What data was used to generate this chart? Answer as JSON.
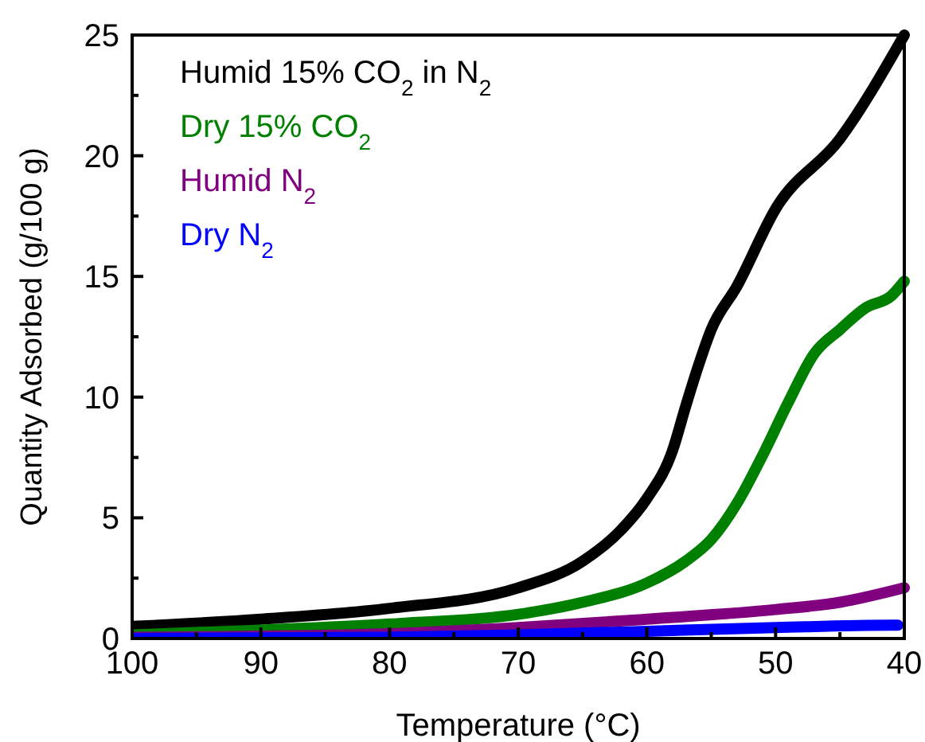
{
  "chart_data": {
    "type": "line",
    "xlabel": "Temperature (°C)",
    "ylabel": "Quantity Adsorbed (g/100 g)",
    "xlim": [
      100,
      40
    ],
    "ylim": [
      0,
      25
    ],
    "xticks": [
      100,
      {
        "value": 95,
        "label": null
      },
      90,
      {
        "value": 85,
        "label": null
      },
      80,
      {
        "value": 75,
        "label": null
      },
      70,
      {
        "value": 65,
        "label": null
      },
      60,
      {
        "value": 55,
        "label": null
      },
      50,
      {
        "value": 45,
        "label": null
      },
      40
    ],
    "yticks": [
      0,
      {
        "value": 2.5,
        "label": null
      },
      5,
      {
        "value": 7.5,
        "label": null
      },
      10,
      {
        "value": 12.5,
        "label": null
      },
      15,
      {
        "value": 17.5,
        "label": null
      },
      20,
      {
        "value": 22.5,
        "label": null
      },
      25
    ],
    "grid": false,
    "legend": "top left",
    "line_style": "solid",
    "series": [
      {
        "name": "Humid 15% CO$_{2}$ in N$_{2}$",
        "color": "#000000",
        "x": [
          100,
          90,
          80,
          70,
          65,
          62,
          60,
          58,
          57,
          56,
          55,
          53,
          50,
          45,
          40
        ],
        "values": [
          0.5,
          0.8,
          1.25,
          2.1,
          3.2,
          4.5,
          5.8,
          7.8,
          9.6,
          11.3,
          12.8,
          14.6,
          17.8,
          20.7,
          25
        ]
      },
      {
        "name": "Dry 15% CO$_{2}$",
        "color": "#008000",
        "x": [
          100,
          90,
          80,
          70,
          65,
          60,
          57,
          55,
          53,
          51,
          49,
          47,
          45,
          43,
          41,
          40
        ],
        "values": [
          0.15,
          0.35,
          0.6,
          1.0,
          1.5,
          2.3,
          3.2,
          4.1,
          5.6,
          7.6,
          9.8,
          11.8,
          12.8,
          13.7,
          14.2,
          14.8
        ]
      },
      {
        "name": "Humid N$_{2}$",
        "color": "#800080",
        "x": [
          100,
          80,
          70,
          60,
          50,
          45,
          40
        ],
        "values": [
          0.05,
          0.2,
          0.45,
          0.8,
          1.2,
          1.5,
          2.1
        ]
      },
      {
        "name": "Dry N$_{2}$",
        "color": "#0000ff",
        "x": [
          100,
          80,
          70,
          60,
          50,
          41,
          40.5
        ],
        "values": [
          0,
          0.05,
          0.15,
          0.3,
          0.45,
          0.55,
          0.55
        ]
      }
    ]
  }
}
